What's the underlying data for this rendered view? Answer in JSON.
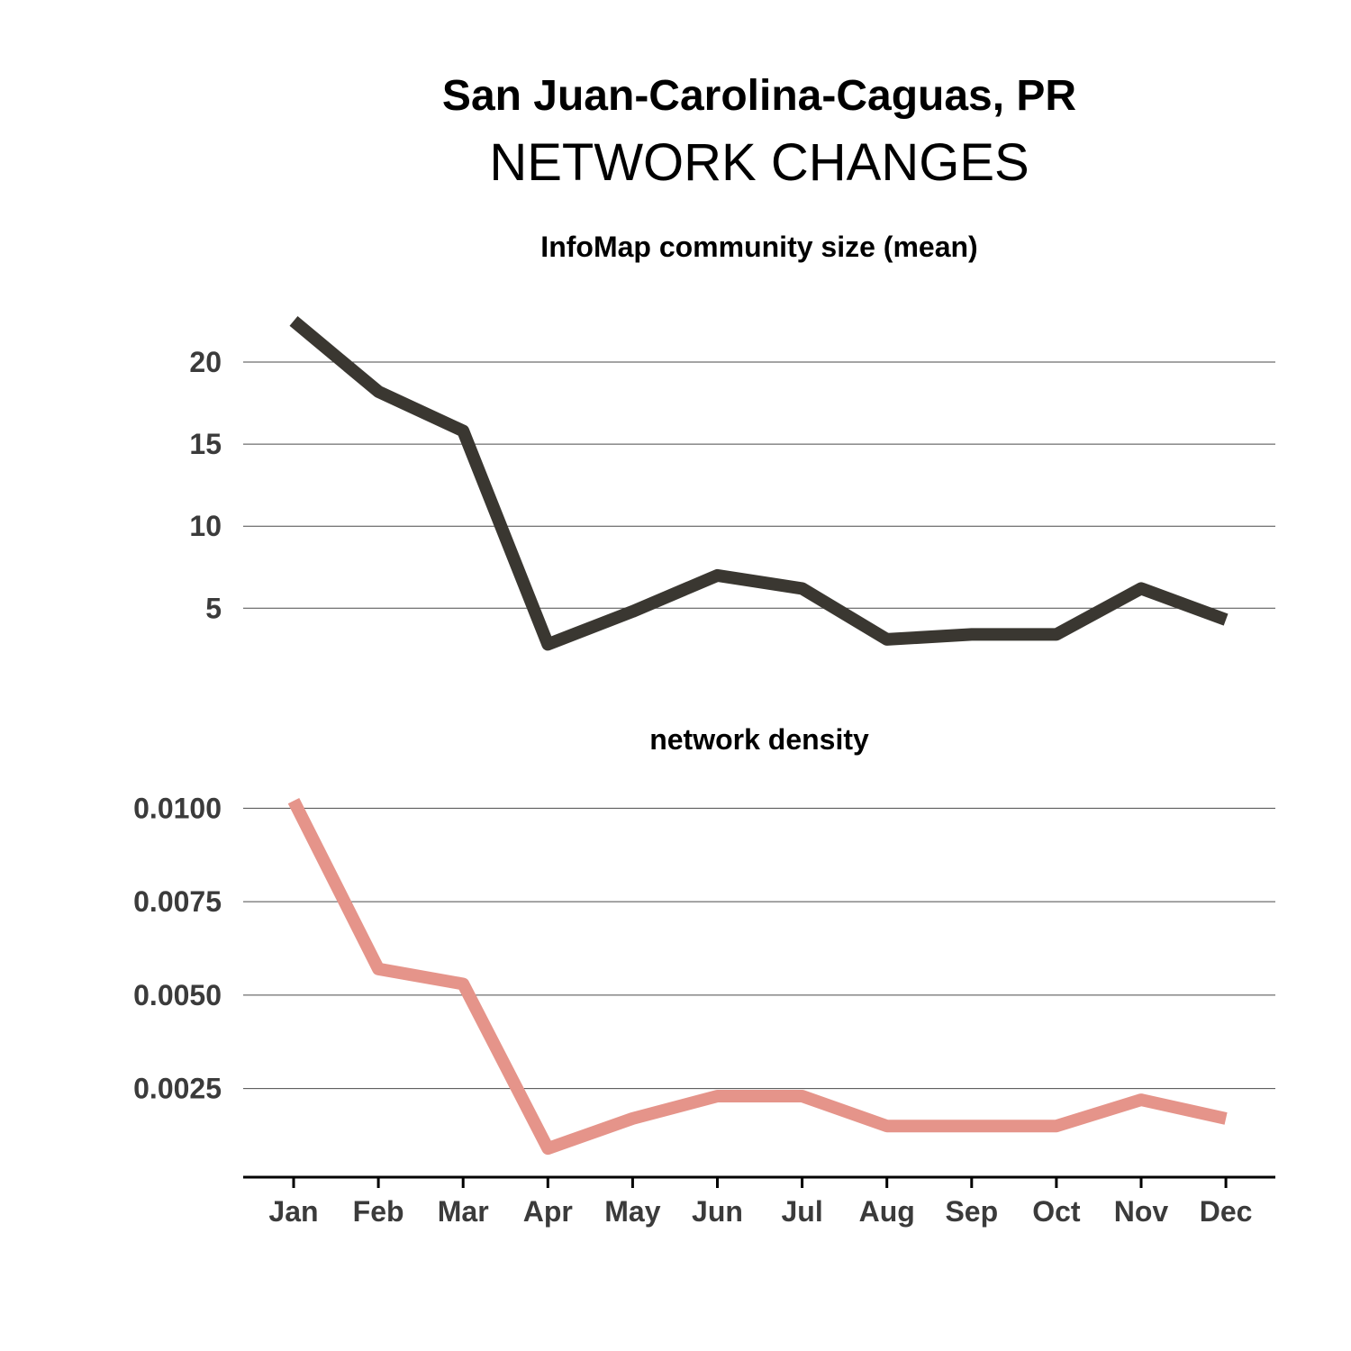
{
  "title": "San Juan-Carolina-Caguas, PR",
  "subtitle": "NETWORK CHANGES",
  "chart_data": [
    {
      "type": "line",
      "title": "InfoMap community size (mean)",
      "categories": [
        "Jan",
        "Feb",
        "Mar",
        "Apr",
        "May",
        "Jun",
        "Jul",
        "Aug",
        "Sep",
        "Oct",
        "Nov",
        "Dec"
      ],
      "series": [
        {
          "values": [
            22.5,
            18.2,
            15.8,
            2.8,
            4.8,
            7.0,
            6.2,
            3.1,
            3.4,
            3.4,
            6.2,
            4.3
          ],
          "color": "#3a3731"
        }
      ],
      "yticks": [
        5,
        10,
        15,
        20
      ],
      "ytick_labels": [
        "5",
        "10",
        "15",
        "20"
      ],
      "ylim": [
        0.9,
        24.5
      ],
      "grid": true
    },
    {
      "type": "line",
      "title": "network density",
      "categories": [
        "Jan",
        "Feb",
        "Mar",
        "Apr",
        "May",
        "Jun",
        "Jul",
        "Aug",
        "Sep",
        "Oct",
        "Nov",
        "Dec"
      ],
      "series": [
        {
          "values": [
            0.0102,
            0.0057,
            0.0053,
            0.0009,
            0.0017,
            0.0023,
            0.0023,
            0.0015,
            0.0015,
            0.0015,
            0.0022,
            0.0017
          ],
          "color": "#e5948a"
        }
      ],
      "yticks": [
        0.0025,
        0.005,
        0.0075,
        0.01
      ],
      "ytick_labels": [
        "0.0025",
        "0.0050",
        "0.0075",
        "0.0100"
      ],
      "ylim": [
        0.0003,
        0.0109
      ],
      "grid": true
    }
  ]
}
